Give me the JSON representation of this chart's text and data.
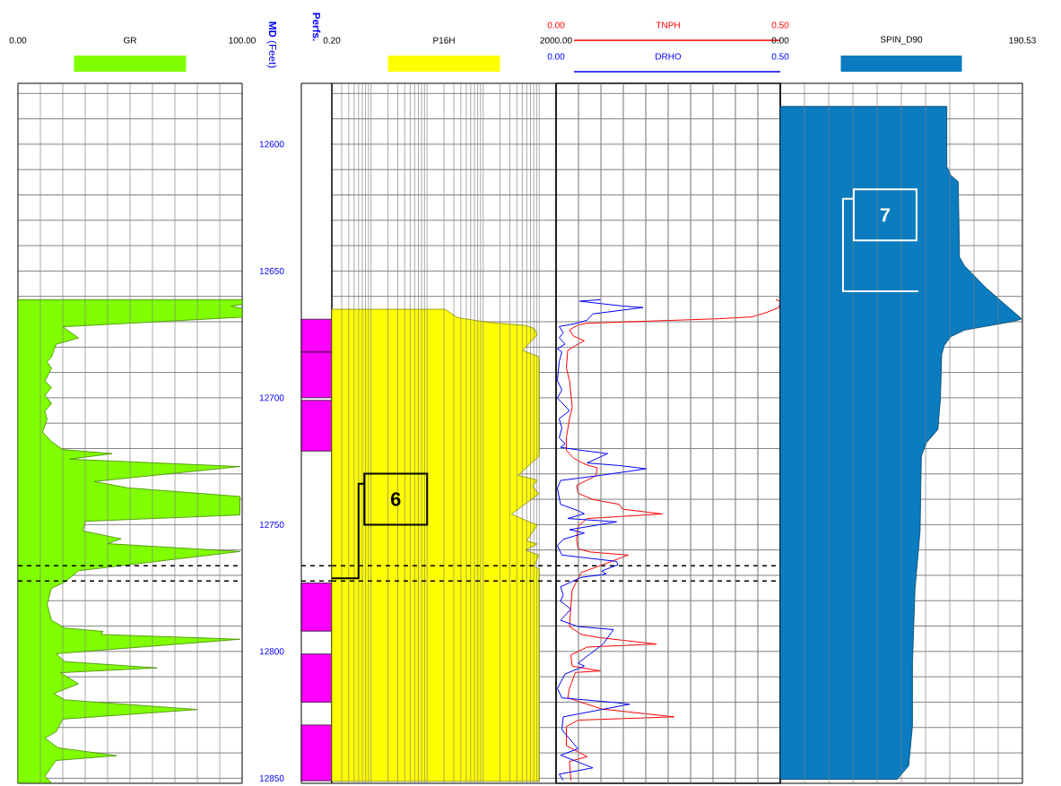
{
  "chart_data": [
    {
      "type": "area",
      "orientation": "horizontal",
      "tick_labels": "x",
      "xlim": [
        0,
        100
      ],
      "xticks": [
        {
          "value": 0,
          "label": "0.00"
        },
        {
          "value": 10,
          "label": null
        },
        {
          "value": 20,
          "label": null
        },
        {
          "value": 30,
          "label": null
        },
        {
          "value": 40,
          "label": null
        },
        {
          "value": 50,
          "label": null
        },
        {
          "value": 60,
          "label": null
        },
        {
          "value": 70,
          "label": null
        },
        {
          "value": 80,
          "label": null
        },
        {
          "value": 90,
          "label": null
        },
        {
          "value": 100,
          "label": "100.00"
        }
      ],
      "ylim": [
        12852,
        12576
      ],
      "yticks": [
        {
          "value": 12580,
          "label": null
        },
        {
          "value": 12590,
          "label": null
        },
        12600,
        {
          "value": 12610,
          "label": null
        },
        {
          "value": 12620,
          "label": null
        },
        {
          "value": 12630,
          "label": null
        },
        {
          "value": 12640,
          "label": null
        },
        12650,
        {
          "value": 12660,
          "label": null
        },
        {
          "value": 12670,
          "label": null
        },
        {
          "value": 12680,
          "label": null
        },
        {
          "value": 12690,
          "label": null
        },
        12700,
        {
          "value": 12710,
          "label": null
        },
        {
          "value": 12720,
          "label": null
        },
        {
          "value": 12730,
          "label": null
        },
        {
          "value": 12740,
          "label": null
        },
        12750,
        {
          "value": 12760,
          "label": null
        },
        {
          "value": 12770,
          "label": null
        },
        {
          "value": 12780,
          "label": null
        },
        {
          "value": 12790,
          "label": null
        },
        12800,
        {
          "value": 12810,
          "label": null
        },
        {
          "value": 12820,
          "label": null
        },
        {
          "value": 12830,
          "label": null
        },
        {
          "value": 12840,
          "label": null
        },
        12850
      ],
      "grid": true,
      "legend": "top",
      "ref_lines": [
        {
          "axis": "y",
          "value": 12766.2,
          "color": "#000000",
          "line_style": "dashed"
        },
        {
          "axis": "y",
          "value": 12772.2,
          "color": "#000000",
          "line_style": "dashed"
        }
      ],
      "series": [
        {
          "name": "GR",
          "color": "#80ff00",
          "x": [
            12661.3,
            12663.2,
            12663.8,
            12664.7,
            12668.2,
            12672.0,
            12676.4,
            12678.9,
            12683.9,
            12685.8,
            12688.3,
            12693.4,
            12695.9,
            12699.0,
            12702.2,
            12705.3,
            12708.4,
            12713.5,
            12717.3,
            12720.4,
            12722.0,
            12724.2,
            12727.1,
            12733.0,
            12735.5,
            12738.9,
            12746.2,
            12748.7,
            12752.5,
            12755.6,
            12757.5,
            12760.6,
            12768.2,
            12772.6,
            12775.1,
            12778.2,
            12781.4,
            12787.7,
            12790.8,
            12792.1,
            12793.3,
            12795.2,
            12800.9,
            12804.0,
            12806.5,
            12808.4,
            12812.8,
            12816.6,
            12819.1,
            12822.9,
            12826.7,
            12831.7,
            12834.2,
            12838.0,
            12841.1,
            12843.0,
            12849.3,
            12851.8
          ],
          "values": [
            100,
            100,
            95,
            100,
            100,
            20,
            27,
            17,
            15,
            13,
            15,
            12,
            15,
            12,
            15,
            12,
            13,
            11,
            15,
            20,
            42,
            23,
            99,
            34,
            49,
            99,
            99,
            30,
            29,
            46,
            40,
            99,
            27,
            21,
            15,
            14,
            13,
            15,
            21,
            38,
            37,
            99,
            17,
            21,
            62,
            19,
            27,
            16,
            21,
            80,
            20,
            17,
            12,
            18,
            44,
            17,
            12,
            15
          ]
        }
      ]
    },
    {
      "type": "bar",
      "title": "Perfs.",
      "ylabel": "**MD** (Feet)",
      "categories": [
        null
      ],
      "tick_labels": "y",
      "ylim": [
        12852,
        12576
      ],
      "yticks": [
        12600,
        12650,
        12700,
        12750,
        12800,
        12850
      ],
      "ref_lines": [
        {
          "axis": "y",
          "value": 12766.2,
          "color": "#000000",
          "line_style": "dashed"
        },
        {
          "axis": "y",
          "value": 12772.2,
          "color": "#000000",
          "line_style": "dashed"
        }
      ],
      "series": [
        {
          "color": "#ff00ff",
          "base": [
            12669
          ],
          "values": [
            13
          ]
        },
        {
          "color": "#ff00ff",
          "base": [
            12682
          ],
          "values": [
            18
          ]
        },
        {
          "color": "#ff00ff",
          "base": [
            12701
          ],
          "values": [
            20
          ]
        },
        {
          "color": "#ff00ff",
          "base": [
            12773
          ],
          "values": [
            19
          ]
        },
        {
          "color": "#ff00ff",
          "base": [
            12801
          ],
          "values": [
            19
          ]
        },
        {
          "color": "#ff00ff",
          "base": [
            12829
          ],
          "values": [
            22
          ]
        }
      ]
    },
    {
      "type": "area",
      "orientation": "horizontal",
      "log": "x",
      "xlim": [
        0.2,
        2000
      ],
      "xticks": [
        {
          "value": 0.2,
          "label": "0.20"
        },
        {
          "value": 0.3,
          "label": null
        },
        {
          "value": 0.4,
          "label": null
        },
        {
          "value": 0.5,
          "label": null
        },
        {
          "value": 0.6,
          "label": null
        },
        {
          "value": 0.7,
          "label": null
        },
        {
          "value": 0.8,
          "label": null
        },
        {
          "value": 0.9,
          "label": null
        },
        {
          "value": 1,
          "label": null
        },
        {
          "value": 2,
          "label": null
        },
        {
          "value": 3,
          "label": null
        },
        {
          "value": 4,
          "label": null
        },
        {
          "value": 5,
          "label": null
        },
        {
          "value": 6,
          "label": null
        },
        {
          "value": 7,
          "label": null
        },
        {
          "value": 8,
          "label": null
        },
        {
          "value": 9,
          "label": null
        },
        {
          "value": 10,
          "label": null
        },
        {
          "value": 20,
          "label": null
        },
        {
          "value": 30,
          "label": null
        },
        {
          "value": 40,
          "label": null
        },
        {
          "value": 50,
          "label": null
        },
        {
          "value": 60,
          "label": null
        },
        {
          "value": 70,
          "label": null
        },
        {
          "value": 80,
          "label": null
        },
        {
          "value": 90,
          "label": null
        },
        {
          "value": 100,
          "label": null
        },
        {
          "value": 200,
          "label": null
        },
        {
          "value": 300,
          "label": null
        },
        {
          "value": 400,
          "label": null
        },
        {
          "value": 500,
          "label": null
        },
        {
          "value": 600,
          "label": null
        },
        {
          "value": 700,
          "label": null
        },
        {
          "value": 800,
          "label": null
        },
        {
          "value": 900,
          "label": null
        },
        {
          "value": 1000,
          "label": null
        },
        {
          "value": 2000,
          "label": "2000.00"
        }
      ],
      "ylim": [
        12852,
        12576
      ],
      "yticks": [
        {
          "value": 12580,
          "label": null
        },
        {
          "value": 12590,
          "label": null
        },
        12600,
        {
          "value": 12610,
          "label": null
        },
        {
          "value": 12620,
          "label": null
        },
        {
          "value": 12630,
          "label": null
        },
        {
          "value": 12640,
          "label": null
        },
        12650,
        {
          "value": 12660,
          "label": null
        },
        {
          "value": 12670,
          "label": null
        },
        {
          "value": 12680,
          "label": null
        },
        {
          "value": 12690,
          "label": null
        },
        12700,
        {
          "value": 12710,
          "label": null
        },
        {
          "value": 12720,
          "label": null
        },
        {
          "value": 12730,
          "label": null
        },
        {
          "value": 12740,
          "label": null
        },
        12750,
        {
          "value": 12760,
          "label": null
        },
        {
          "value": 12770,
          "label": null
        },
        {
          "value": 12780,
          "label": null
        },
        {
          "value": 12790,
          "label": null
        },
        12800,
        {
          "value": 12810,
          "label": null
        },
        {
          "value": 12820,
          "label": null
        },
        {
          "value": 12830,
          "label": null
        },
        {
          "value": 12840,
          "label": null
        },
        12850
      ],
      "tick_labels": "x",
      "grid": true,
      "legend": "top",
      "annotations": [
        "6"
      ],
      "ref_lines": [
        {
          "axis": "y",
          "value": 12766.2,
          "color": "#000000",
          "line_style": "dashed"
        },
        {
          "axis": "y",
          "value": 12772.2,
          "color": "#000000",
          "line_style": "dashed"
        }
      ],
      "series": [
        {
          "name": "P16H",
          "color": "#ffff00",
          "x": [
            12665.1,
            12668.4,
            12670.2,
            12671.5,
            12672.7,
            12675.2,
            12681.3,
            12683.8,
            12685.0,
            12722.0,
            12723.2,
            12730.6,
            12732.4,
            12734.9,
            12737.9,
            12745.9,
            12750.2,
            12756.4,
            12757.6,
            12760.1,
            12762.0,
            12766.3,
            12767.5,
            12851.2
          ],
          "values": [
            21,
            35,
            120,
            570,
            820,
            920,
            510,
            980,
            1000,
            1000,
            980,
            420,
            920,
            770,
            980,
            320,
            920,
            600,
            920,
            570,
            980,
            820,
            1000,
            1000
          ]
        }
      ]
    },
    {
      "type": "line",
      "orientation": "horizontal",
      "xlim": [
        0,
        0.5
      ],
      "xticks": [
        {
          "value": 0,
          "label": "0.00"
        },
        {
          "value": 0.05,
          "label": null
        },
        {
          "value": 0.1,
          "label": null
        },
        {
          "value": 0.15,
          "label": null
        },
        {
          "value": 0.2,
          "label": null
        },
        {
          "value": 0.25,
          "label": null
        },
        {
          "value": 0.3,
          "label": null
        },
        {
          "value": 0.35,
          "label": null
        },
        {
          "value": 0.4,
          "label": null
        },
        {
          "value": 0.45,
          "label": null
        },
        {
          "value": 0.5,
          "label": "0.50"
        }
      ],
      "x2lim": [
        0,
        0.5
      ],
      "x2ticks": [
        {
          "value": 0,
          "label": "0.00"
        },
        {
          "value": 0.05,
          "label": null
        },
        {
          "value": 0.1,
          "label": null
        },
        {
          "value": 0.15,
          "label": null
        },
        {
          "value": 0.2,
          "label": null
        },
        {
          "value": 0.25,
          "label": null
        },
        {
          "value": 0.3,
          "label": null
        },
        {
          "value": 0.35,
          "label": null
        },
        {
          "value": 0.4,
          "label": null
        },
        {
          "value": 0.45,
          "label": null
        },
        {
          "value": 0.5,
          "label": "0.50"
        }
      ],
      "ylim": [
        12852,
        12576
      ],
      "yticks": [
        {
          "value": 12580,
          "label": null
        },
        {
          "value": 12590,
          "label": null
        },
        12600,
        {
          "value": 12610,
          "label": null
        },
        {
          "value": 12620,
          "label": null
        },
        {
          "value": 12630,
          "label": null
        },
        {
          "value": 12640,
          "label": null
        },
        12650,
        {
          "value": 12660,
          "label": null
        },
        {
          "value": 12670,
          "label": null
        },
        {
          "value": 12680,
          "label": null
        },
        {
          "value": 12690,
          "label": null
        },
        12700,
        {
          "value": 12710,
          "label": null
        },
        {
          "value": 12720,
          "label": null
        },
        {
          "value": 12730,
          "label": null
        },
        {
          "value": 12740,
          "label": null
        },
        12750,
        {
          "value": 12760,
          "label": null
        },
        {
          "value": 12770,
          "label": null
        },
        {
          "value": 12780,
          "label": null
        },
        {
          "value": 12790,
          "label": null
        },
        12800,
        {
          "value": 12810,
          "label": null
        },
        {
          "value": 12820,
          "label": null
        },
        {
          "value": 12830,
          "label": null
        },
        {
          "value": 12840,
          "label": null
        },
        12850
      ],
      "tick_labels": "x",
      "grid": true,
      "legend": "top",
      "marker": "none",
      "ref_lines": [
        {
          "axis": "y",
          "value": 12766.2,
          "color": "#000000",
          "line_style": "dashed"
        },
        {
          "axis": "y",
          "value": 12772.2,
          "color": "#000000",
          "line_style": "dashed"
        }
      ],
      "series": [
        {
          "name": "TNPH",
          "color": "#ff0000",
          "x": [
            12661.3,
            12661.9,
            12664.4,
            12666.3,
            12668.1,
            12668.8,
            12670.6,
            12671.3,
            12673.2,
            12675.7,
            12677.5,
            12679.4,
            12681.3,
            12688.2,
            12693.2,
            12703.8,
            12708.2,
            12715.7,
            12720.7,
            12723.8,
            12726.3,
            12727.6,
            12730.7,
            12734.5,
            12737.6,
            12740.1,
            12742.0,
            12743.9,
            12745.8,
            12747.6,
            12750.7,
            12755.8,
            12759.5,
            12760.8,
            12762.0,
            12763.3,
            12765.1,
            12768.9,
            12771.4,
            12775.8,
            12782.0,
            12790.2,
            12793.3,
            12794.6,
            12797.1,
            12798.3,
            12801.4,
            12805.8,
            12807.7,
            12808.3,
            12814.6,
            12818.3,
            12822.7,
            12825.8,
            12827.1,
            12829.6,
            12837.1,
            12841.5,
            12843.4,
            12850.9
          ],
          "values": [
            0.49,
            0.5,
            0.497,
            0.47,
            0.437,
            0.365,
            0.069,
            0.049,
            0.03,
            0.039,
            0.063,
            0.043,
            0.026,
            0.023,
            0.03,
            0.036,
            0.03,
            0.023,
            0.023,
            0.039,
            0.066,
            0.092,
            0.089,
            0.046,
            0.049,
            0.082,
            0.141,
            0.148,
            0.237,
            0.069,
            0.049,
            0.046,
            0.049,
            0.076,
            0.161,
            0.141,
            0.115,
            0.056,
            0.049,
            0.036,
            0.033,
            0.03,
            0.056,
            0.099,
            0.224,
            0.069,
            0.033,
            0.036,
            0.099,
            0.043,
            0.03,
            0.026,
            0.102,
            0.263,
            0.049,
            0.023,
            0.023,
            0.069,
            0.03,
            0.033
          ]
        },
        {
          "name": "DRHO",
          "color": "#0000ff",
          "axis": "x2",
          "x": [
            12661.3,
            12661.9,
            12663.8,
            12664.4,
            12666.9,
            12669.4,
            12670.6,
            12671.9,
            12674.4,
            12676.3,
            12678.8,
            12680.7,
            12681.9,
            12685.7,
            12693.2,
            12696.9,
            12700.1,
            12705.1,
            12708.2,
            12712.0,
            12715.7,
            12718.2,
            12719.5,
            12720.7,
            12722.0,
            12725.7,
            12726.7,
            12728.0,
            12730.5,
            12732.6,
            12735.7,
            12742.0,
            12744.5,
            12745.7,
            12747.6,
            12748.9,
            12752.0,
            12753.3,
            12755.8,
            12758.3,
            12762.0,
            12763.3,
            12764.5,
            12765.8,
            12768.3,
            12769.5,
            12770.8,
            12774.5,
            12777.7,
            12780.2,
            12783.3,
            12787.7,
            12790.2,
            12791.4,
            12797.1,
            12804.6,
            12805.8,
            12808.9,
            12814.6,
            12818.3,
            12820.2,
            12820.8,
            12825.8,
            12830.9,
            12838.4,
            12840.9,
            12845.9,
            12848.4,
            12850.9
          ],
          "values": [
            0.099,
            0.053,
            0.148,
            0.194,
            0.082,
            0.069,
            0.046,
            0.007,
            0.016,
            0.007,
            0.02,
            0.003,
            0.013,
            0.007,
            0.003,
            0.013,
            0.003,
            0.03,
            0.007,
            0.013,
            0.007,
            0.02,
            0.01,
            0.056,
            0.115,
            0.069,
            0.141,
            0.201,
            0.102,
            0.01,
            0.003,
            0.01,
            0.049,
            0.063,
            0.026,
            0.135,
            0.03,
            0.063,
            0.016,
            0.003,
            0.013,
            0.076,
            0.135,
            0.138,
            0.102,
            0.112,
            0.056,
            0.01,
            0.016,
            0.01,
            0.033,
            0.01,
            0.049,
            0.128,
            0.105,
            0.049,
            0.063,
            0.02,
            0.003,
            0.013,
            0.135,
            0.164,
            0.016,
            0.013,
            0.049,
            0.01,
            0.082,
            0.007,
            0.016
          ]
        }
      ]
    },
    {
      "type": "area",
      "orientation": "horizontal",
      "xlim": [
        0,
        190.53
      ],
      "xticks": [
        {
          "value": 0,
          "label": "0.00"
        },
        {
          "value": 19.053,
          "label": null
        },
        {
          "value": 38.106,
          "label": null
        },
        {
          "value": 57.159,
          "label": null
        },
        {
          "value": 76.212,
          "label": null
        },
        {
          "value": 95.265,
          "label": null
        },
        {
          "value": 114.318,
          "label": null
        },
        {
          "value": 133.371,
          "label": null
        },
        {
          "value": 152.424,
          "label": null
        },
        {
          "value": 171.477,
          "label": null
        },
        {
          "value": 190.53,
          "label": "190.53"
        }
      ],
      "ylim": [
        12852,
        12576
      ],
      "yticks": [
        {
          "value": 12580,
          "label": null
        },
        {
          "value": 12590,
          "label": null
        },
        12600,
        {
          "value": 12610,
          "label": null
        },
        {
          "value": 12620,
          "label": null
        },
        {
          "value": 12630,
          "label": null
        },
        {
          "value": 12640,
          "label": null
        },
        12650,
        {
          "value": 12660,
          "label": null
        },
        {
          "value": 12670,
          "label": null
        },
        {
          "value": 12680,
          "label": null
        },
        {
          "value": 12690,
          "label": null
        },
        12700,
        {
          "value": 12710,
          "label": null
        },
        {
          "value": 12720,
          "label": null
        },
        {
          "value": 12730,
          "label": null
        },
        {
          "value": 12740,
          "label": null
        },
        12750,
        {
          "value": 12760,
          "label": null
        },
        {
          "value": 12770,
          "label": null
        },
        {
          "value": 12780,
          "label": null
        },
        {
          "value": 12790,
          "label": null
        },
        12800,
        {
          "value": 12810,
          "label": null
        },
        {
          "value": 12820,
          "label": null
        },
        {
          "value": 12830,
          "label": null
        },
        {
          "value": 12840,
          "label": null
        },
        12850
      ],
      "tick_labels": "x",
      "grid": true,
      "legend": "top",
      "annotations": [
        "7"
      ],
      "series": [
        {
          "name": "SPIN_D90",
          "color": "#0a7cbf",
          "x": [
            12585.1,
            12608.7,
            12612.2,
            12614.8,
            12644.5,
            12648.0,
            12656.7,
            12668.9,
            12669.8,
            12673.3,
            12675.9,
            12679.4,
            12682.9,
            12700.3,
            12712.5,
            12717.7,
            12723.0,
            12752.6,
            12775.4,
            12805.0,
            12829.4,
            12845.1,
            12850.4
          ],
          "values": [
            131,
            131,
            134,
            140,
            141,
            145,
            162,
            190,
            184,
            145,
            134,
            129,
            127,
            126,
            124,
            115,
            111,
            110,
            106,
            104,
            104,
            101,
            92
          ]
        }
      ]
    }
  ]
}
